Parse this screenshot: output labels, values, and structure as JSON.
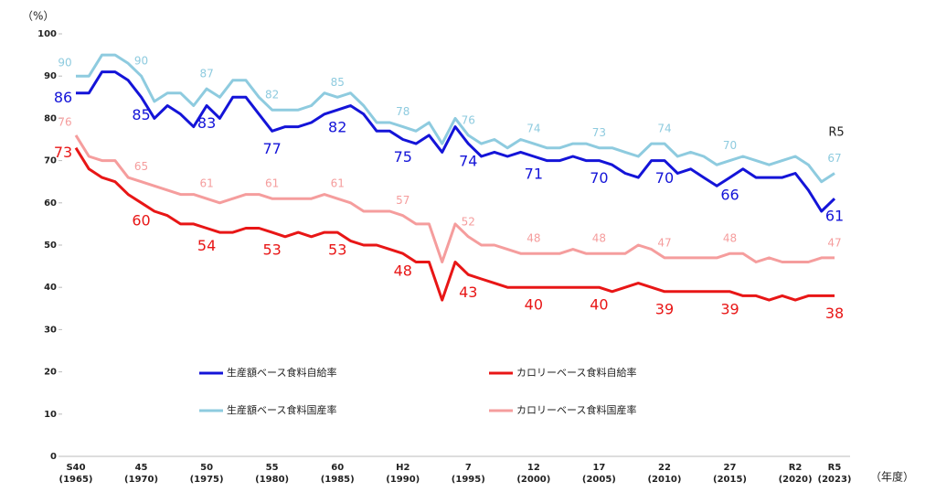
{
  "chart_data": {
    "type": "line",
    "y_axis_label": "（%）",
    "x_axis_label": "（年度）",
    "annotation": "R5",
    "categories": [
      "S40\n(1965)",
      null,
      null,
      null,
      null,
      "45\n(1970)",
      null,
      null,
      null,
      null,
      "50\n(1975)",
      null,
      null,
      null,
      null,
      "55\n(1980)",
      null,
      null,
      null,
      null,
      "60\n(1985)",
      null,
      null,
      null,
      null,
      "H2\n(1990)",
      null,
      null,
      null,
      null,
      "7\n(1995)",
      null,
      null,
      null,
      null,
      "12\n(2000)",
      null,
      null,
      null,
      null,
      "17\n(2005)",
      null,
      null,
      null,
      null,
      "22\n(2010)",
      null,
      null,
      null,
      null,
      "27\n(2015)",
      null,
      null,
      null,
      null,
      "R2\n(2020)",
      null,
      null,
      "R5\n(2023)"
    ],
    "ylim": [
      0,
      100
    ],
    "yticks": [
      0,
      10,
      20,
      30,
      40,
      50,
      60,
      70,
      80,
      90,
      100
    ],
    "grid": false,
    "series": [
      {
        "name": "生産額ベース食料自給率",
        "color": "#1414d8",
        "values": [
          86,
          86,
          91,
          91,
          89,
          85,
          80,
          83,
          81,
          78,
          83,
          80,
          85,
          85,
          81,
          77,
          78,
          78,
          79,
          81,
          82,
          83,
          81,
          77,
          77,
          75,
          74,
          76,
          72,
          78,
          74,
          71,
          72,
          71,
          72,
          71,
          70,
          70,
          71,
          70,
          70,
          69,
          67,
          66,
          70,
          70,
          67,
          68,
          66,
          64,
          66,
          68,
          66,
          66,
          66,
          67,
          63,
          58,
          61
        ],
        "value_labels": [
          "86",
          null,
          null,
          null,
          null,
          "85",
          null,
          null,
          null,
          null,
          "83",
          null,
          null,
          null,
          null,
          "77",
          null,
          null,
          null,
          null,
          "82",
          null,
          null,
          null,
          null,
          "75",
          null,
          null,
          null,
          null,
          "74",
          null,
          null,
          null,
          null,
          "71",
          null,
          null,
          null,
          null,
          "70",
          null,
          null,
          null,
          null,
          "70",
          null,
          null,
          null,
          null,
          "66",
          null,
          null,
          null,
          null,
          null,
          null,
          null,
          "61"
        ]
      },
      {
        "name": "カロリーベース食料自給率",
        "color": "#e81616",
        "values": [
          73,
          68,
          66,
          65,
          62,
          60,
          58,
          57,
          55,
          55,
          54,
          53,
          53,
          54,
          54,
          53,
          52,
          53,
          52,
          53,
          53,
          51,
          50,
          50,
          49,
          48,
          46,
          46,
          37,
          46,
          43,
          42,
          41,
          40,
          40,
          40,
          40,
          40,
          40,
          40,
          40,
          39,
          40,
          41,
          40,
          39,
          39,
          39,
          39,
          39,
          39,
          38,
          38,
          37,
          38,
          37,
          38,
          38,
          38
        ],
        "value_labels": [
          "73",
          null,
          null,
          null,
          null,
          "60",
          null,
          null,
          null,
          null,
          "54",
          null,
          null,
          null,
          null,
          "53",
          null,
          null,
          null,
          null,
          "53",
          null,
          null,
          null,
          null,
          "48",
          null,
          null,
          null,
          null,
          "43",
          null,
          null,
          null,
          null,
          "40",
          null,
          null,
          null,
          null,
          "40",
          null,
          null,
          null,
          null,
          "39",
          null,
          null,
          null,
          null,
          "39",
          null,
          null,
          null,
          null,
          null,
          null,
          null,
          "38"
        ]
      },
      {
        "name": "生産額ベース食料国産率",
        "color": "#8ecbdf",
        "values": [
          90,
          90,
          95,
          95,
          93,
          90,
          84,
          86,
          86,
          83,
          87,
          85,
          89,
          89,
          85,
          82,
          82,
          82,
          83,
          86,
          85,
          86,
          83,
          79,
          79,
          78,
          77,
          79,
          74,
          80,
          76,
          74,
          75,
          73,
          75,
          74,
          73,
          73,
          74,
          74,
          73,
          73,
          72,
          71,
          74,
          74,
          71,
          72,
          71,
          69,
          70,
          71,
          70,
          69,
          70,
          71,
          69,
          65,
          67
        ],
        "value_labels": [
          "90",
          null,
          null,
          null,
          null,
          "90",
          null,
          null,
          null,
          null,
          "87",
          null,
          null,
          null,
          null,
          "82",
          null,
          null,
          null,
          null,
          "85",
          null,
          null,
          null,
          null,
          "78",
          null,
          null,
          null,
          null,
          "76",
          null,
          null,
          null,
          null,
          "74",
          null,
          null,
          null,
          null,
          "73",
          null,
          null,
          null,
          null,
          "74",
          null,
          null,
          null,
          null,
          "70",
          null,
          null,
          null,
          null,
          null,
          null,
          null,
          "67"
        ]
      },
      {
        "name": "カロリーベース食料国産率",
        "color": "#f59d9d",
        "values": [
          76,
          71,
          70,
          70,
          66,
          65,
          64,
          63,
          62,
          62,
          61,
          60,
          61,
          62,
          62,
          61,
          61,
          61,
          61,
          62,
          61,
          60,
          58,
          58,
          58,
          57,
          55,
          55,
          46,
          55,
          52,
          50,
          50,
          49,
          48,
          48,
          48,
          48,
          49,
          48,
          48,
          48,
          48,
          50,
          49,
          47,
          47,
          47,
          47,
          47,
          48,
          48,
          46,
          47,
          46,
          46,
          46,
          47,
          47
        ],
        "value_labels": [
          "76",
          null,
          null,
          null,
          null,
          "65",
          null,
          null,
          null,
          null,
          "61",
          null,
          null,
          null,
          null,
          "61",
          null,
          null,
          null,
          null,
          "61",
          null,
          null,
          null,
          null,
          "57",
          null,
          null,
          null,
          null,
          "52",
          null,
          null,
          null,
          null,
          "48",
          null,
          null,
          null,
          null,
          "48",
          null,
          null,
          null,
          null,
          "47",
          null,
          null,
          null,
          null,
          "48",
          null,
          null,
          null,
          null,
          null,
          null,
          null,
          "47"
        ]
      }
    ]
  }
}
